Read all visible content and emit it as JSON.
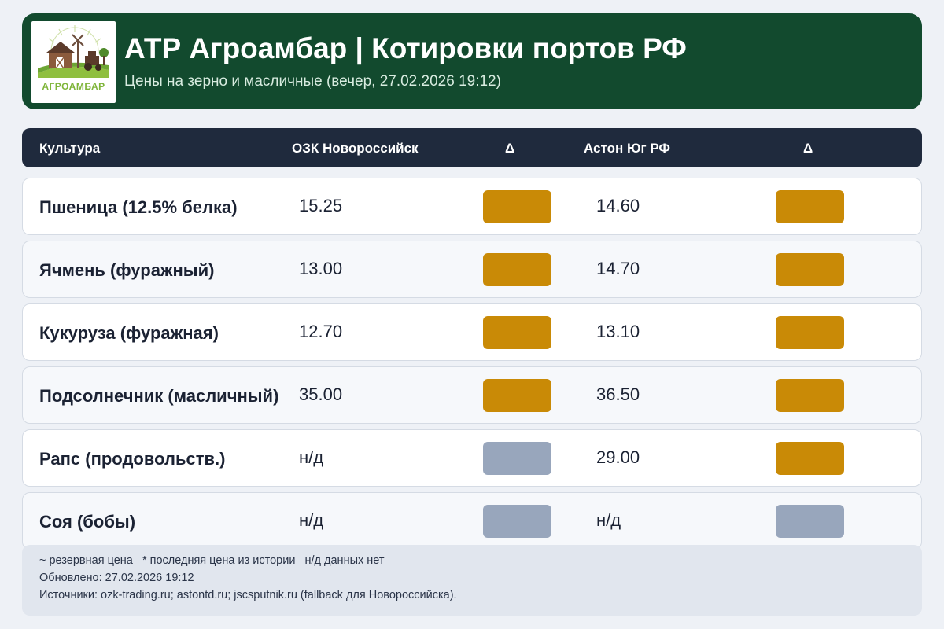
{
  "header": {
    "title": "АТР Агроамбар | Котировки портов РФ",
    "subtitle": "Цены на зерно и масличные (вечер, 27.02.2026 19:12)",
    "logo_text": "АГРОАМБАР"
  },
  "table": {
    "columns": [
      "Культура",
      "ОЗК Новороссийск",
      "Δ",
      "Астон Юг РФ",
      "Δ"
    ],
    "rows": [
      {
        "crop": "Пшеница (12.5% белка)",
        "ozk": "15.25",
        "ozk_delta": "gold",
        "aston": "14.60",
        "aston_delta": "gold"
      },
      {
        "crop": "Ячмень (фуражный)",
        "ozk": "13.00",
        "ozk_delta": "gold",
        "aston": "14.70",
        "aston_delta": "gold"
      },
      {
        "crop": "Кукуруза (фуражная)",
        "ozk": "12.70",
        "ozk_delta": "gold",
        "aston": "13.10",
        "aston_delta": "gold"
      },
      {
        "crop": "Подсолнечник (масличный)",
        "ozk": "35.00",
        "ozk_delta": "gold",
        "aston": "36.50",
        "aston_delta": "gold"
      },
      {
        "crop": "Рапс (продовольств.)",
        "ozk": "н/д",
        "ozk_delta": "gray",
        "aston": "29.00",
        "aston_delta": "gold"
      },
      {
        "crop": "Соя (бобы)",
        "ozk": "н/д",
        "ozk_delta": "gray",
        "aston": "н/д",
        "aston_delta": "gray"
      }
    ]
  },
  "footer": {
    "legend": "~ резервная цена   * последняя цена из истории   н/д данных нет",
    "updated": "Обновлено: 27.02.2026 19:12",
    "sources": "Источники: ozk-trading.ru; astontd.ru; jscsputnik.ru (fallback для Новороссийска)."
  },
  "colors": {
    "header_bg": "#124a2e",
    "table_head_bg": "#1f2a3d",
    "delta_gold": "#c98a06",
    "delta_gray": "#98a6bc"
  }
}
